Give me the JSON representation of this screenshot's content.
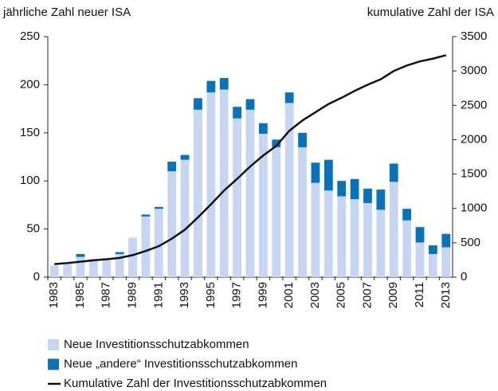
{
  "chart_data": {
    "type": "bar",
    "stacked": true,
    "y_label": "jährliche Zahl neuer ISA",
    "y2_label": "kumulative Zahl der ISA",
    "categories": [
      "1983",
      null,
      "1985",
      null,
      "1987",
      null,
      "1989",
      null,
      "1991",
      null,
      "1993",
      null,
      "1995",
      null,
      "1997",
      null,
      "1999",
      null,
      "2001",
      null,
      "2003",
      null,
      "2005",
      null,
      "2007",
      null,
      "2009",
      null,
      "2011",
      null,
      "2013"
    ],
    "series": [
      {
        "name": "Neue Investitionsschutzabkommen",
        "type": "bar",
        "color": "#c6d6f1",
        "values": [
          12,
          15,
          21,
          19,
          20,
          24,
          41,
          63,
          71,
          110,
          122,
          174,
          192,
          195,
          165,
          174,
          149,
          135,
          181,
          135,
          98,
          90,
          84,
          81,
          77,
          70,
          99,
          59,
          36,
          24,
          31
        ]
      },
      {
        "name": "Neue „andere“ Investitionsschutzabkommen",
        "type": "bar",
        "color": "#0a72b8",
        "values": [
          0,
          0,
          3,
          0,
          0,
          2,
          0,
          2,
          2,
          10,
          5,
          12,
          12,
          12,
          12,
          11,
          11,
          8,
          11,
          15,
          21,
          32,
          16,
          21,
          15,
          21,
          19,
          12,
          16,
          9,
          14
        ]
      },
      {
        "name": "Kumulative Zahl der Investitionsschutzabkommen",
        "type": "line",
        "axis": "y2",
        "color": "#111111",
        "values": [
          190,
          205,
          225,
          245,
          260,
          280,
          320,
          380,
          450,
          560,
          690,
          870,
          1060,
          1260,
          1430,
          1610,
          1770,
          1910,
          2130,
          2280,
          2400,
          2520,
          2610,
          2710,
          2800,
          2880,
          3000,
          3080,
          3140,
          3180,
          3230
        ]
      }
    ],
    "ylim": [
      0,
      250
    ],
    "yticks": [
      0,
      50,
      100,
      150,
      200,
      250
    ],
    "y2lim": [
      0,
      3500
    ],
    "y2ticks": [
      0,
      500,
      1000,
      1500,
      2000,
      2500,
      3000,
      3500
    ],
    "grid": false,
    "legend": "bottom"
  }
}
